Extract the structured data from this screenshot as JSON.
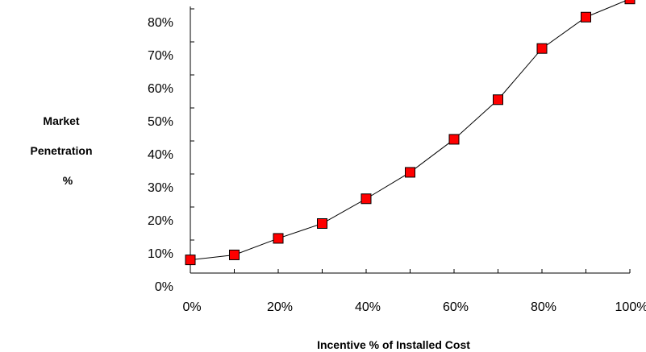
{
  "chart_data": {
    "type": "line",
    "title": "",
    "xlabel": "Incentive % of Installed Cost",
    "ylabel_lines": [
      "Market",
      "Penetration",
      "%"
    ],
    "x": [
      0,
      10,
      20,
      30,
      40,
      50,
      60,
      70,
      80,
      90,
      100
    ],
    "series": [
      {
        "values": [
          4,
          5.5,
          10.5,
          15,
          22.5,
          30.5,
          40.5,
          52.5,
          68,
          77.5,
          83
        ]
      }
    ],
    "xlim": [
      0,
      100
    ],
    "ylim": [
      0,
      80
    ],
    "x_ticks": [
      0,
      20,
      40,
      60,
      80,
      100
    ],
    "x_tick_labels": [
      "0%",
      "20%",
      "40%",
      "60%",
      "80%",
      "100%"
    ],
    "y_ticks": [
      0,
      10,
      20,
      30,
      40,
      50,
      60,
      70,
      80
    ],
    "y_tick_labels": [
      "0%",
      "10%",
      "20%",
      "30%",
      "40%",
      "50%",
      "60%",
      "70%",
      "80%"
    ],
    "grid": false,
    "legend": "none",
    "colors": {
      "marker_fill": "#ff0000",
      "marker_stroke": "#000000",
      "line": "#000000",
      "axis": "#000000"
    }
  }
}
